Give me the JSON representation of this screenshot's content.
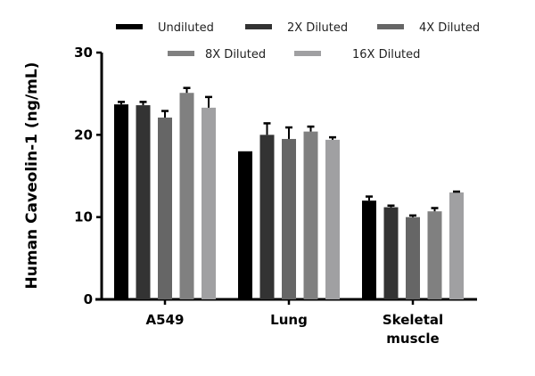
{
  "chart_data": {
    "type": "bar",
    "title": "",
    "xlabel": "",
    "ylabel": "Human Caveolin-1 (ng/mL)",
    "ylim": [
      0,
      30
    ],
    "yticks": [
      0,
      10,
      20,
      30
    ],
    "grid": false,
    "legend_position": "top",
    "categories": [
      "A549",
      "Lung",
      "Skeletal muscle"
    ],
    "category_lines": [
      [
        "A549"
      ],
      [
        "Lung"
      ],
      [
        "Skeletal",
        "muscle"
      ]
    ],
    "series": [
      {
        "name": "Undiluted",
        "color": "#000000",
        "values": [
          23.7,
          18.0,
          12.0
        ],
        "error": [
          0.3,
          0,
          0.5
        ]
      },
      {
        "name": "2X Diluted",
        "color": "#333333",
        "values": [
          23.6,
          20.0,
          11.2
        ],
        "error": [
          0.4,
          1.4,
          0.2
        ]
      },
      {
        "name": "4X Diluted",
        "color": "#666666",
        "values": [
          22.1,
          19.5,
          10.0
        ],
        "error": [
          0.8,
          1.4,
          0.2
        ]
      },
      {
        "name": "8X Diluted",
        "color": "#808080",
        "values": [
          25.1,
          20.4,
          10.7
        ],
        "error": [
          0.6,
          0.6,
          0.4
        ]
      },
      {
        "name": "16X Diluted",
        "color": "#a0a0a2",
        "values": [
          23.3,
          19.4,
          13.0
        ],
        "error": [
          1.3,
          0.3,
          0.1
        ]
      }
    ]
  }
}
